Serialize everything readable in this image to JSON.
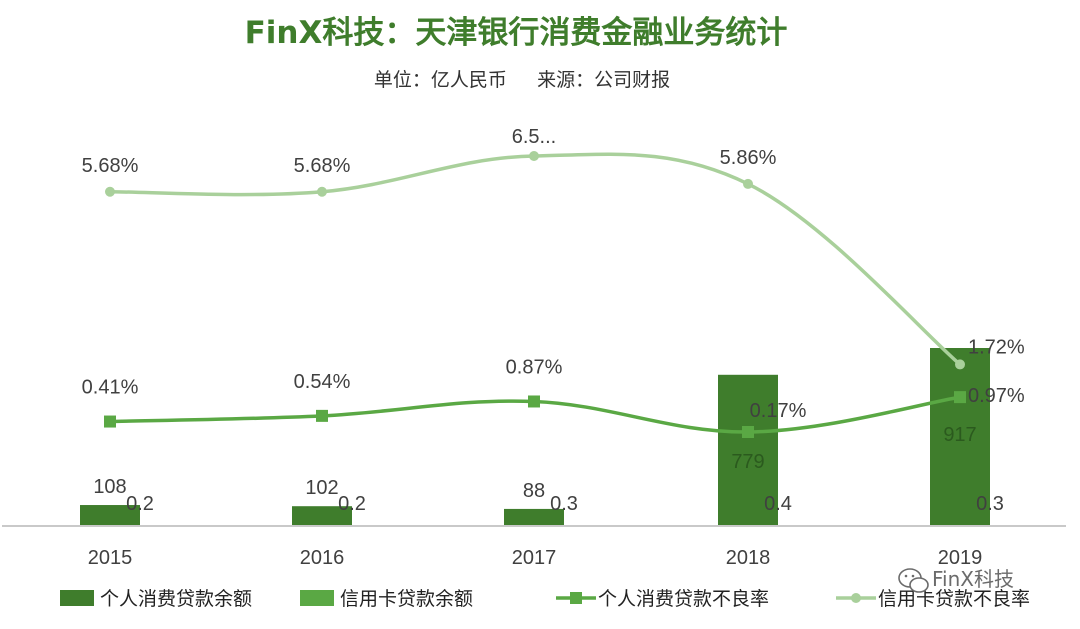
{
  "chart_data": {
    "type": "bar",
    "title": "FinX科技：天津银行消费金融业务统计",
    "subtitle": "单位：亿人民币     来源：公司财报",
    "categories": [
      "2015",
      "2016",
      "2017",
      "2018",
      "2019"
    ],
    "series": [
      {
        "name": "个人消费贷款余额",
        "kind": "bar",
        "axis": "left",
        "color": "#3f7d2c",
        "values": [
          108,
          102,
          88,
          779,
          917
        ],
        "labels": [
          "108",
          "102",
          "88",
          "779",
          "917"
        ]
      },
      {
        "name": "信用卡贷款余额",
        "kind": "bar",
        "axis": "left",
        "color": "#5aa844",
        "values": [
          0.2,
          0.2,
          0.3,
          0.4,
          0.3
        ],
        "labels": [
          "0.2",
          "0.2",
          "0.3",
          "0.4",
          "0.3"
        ]
      },
      {
        "name": "个人消费贷款不良率",
        "kind": "line",
        "axis": "right",
        "color": "#5aa844",
        "marker": "square",
        "values": [
          0.41,
          0.54,
          0.87,
          0.17,
          0.97
        ],
        "labels": [
          "0.41%",
          "0.54%",
          "0.87%",
          "0.17%",
          "0.97%"
        ]
      },
      {
        "name": "信用卡贷款不良率",
        "kind": "line",
        "axis": "right",
        "color": "#a9d09b",
        "marker": "circle",
        "values": [
          5.68,
          5.68,
          6.5,
          5.86,
          1.72
        ],
        "labels": [
          "5.68%",
          "5.68%",
          "6.5...",
          "5.86%",
          "1.72%"
        ]
      }
    ],
    "legend_position": "bottom",
    "grid": false
  },
  "watermark": {
    "text": "FinX科技"
  }
}
